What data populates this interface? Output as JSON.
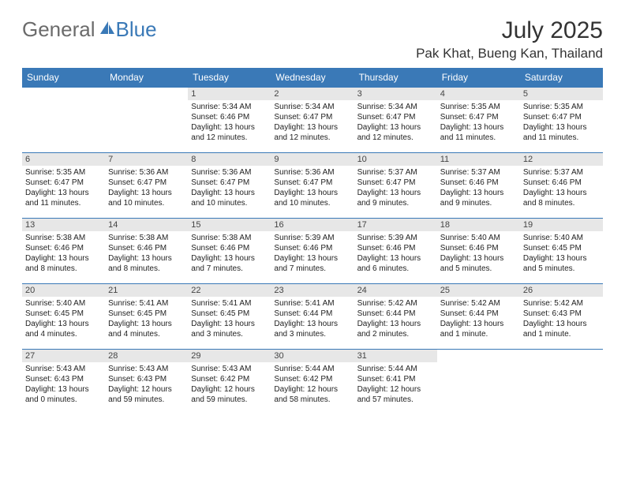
{
  "logo": {
    "part1": "General",
    "part2": "Blue"
  },
  "title": "July 2025",
  "location": "Pak Khat, Bueng Kan, Thailand",
  "colors": {
    "header_bg": "#3a79b7",
    "header_text": "#ffffff",
    "daynum_bg": "#e7e7e7",
    "border": "#3a79b7",
    "logo_gray": "#6b6b6b",
    "logo_blue": "#3a79b7"
  },
  "weekdays": [
    "Sunday",
    "Monday",
    "Tuesday",
    "Wednesday",
    "Thursday",
    "Friday",
    "Saturday"
  ],
  "weeks": [
    [
      {
        "n": "",
        "sr": "",
        "ss": "",
        "dl": ""
      },
      {
        "n": "",
        "sr": "",
        "ss": "",
        "dl": ""
      },
      {
        "n": "1",
        "sr": "5:34 AM",
        "ss": "6:46 PM",
        "dl": "13 hours and 12 minutes."
      },
      {
        "n": "2",
        "sr": "5:34 AM",
        "ss": "6:47 PM",
        "dl": "13 hours and 12 minutes."
      },
      {
        "n": "3",
        "sr": "5:34 AM",
        "ss": "6:47 PM",
        "dl": "13 hours and 12 minutes."
      },
      {
        "n": "4",
        "sr": "5:35 AM",
        "ss": "6:47 PM",
        "dl": "13 hours and 11 minutes."
      },
      {
        "n": "5",
        "sr": "5:35 AM",
        "ss": "6:47 PM",
        "dl": "13 hours and 11 minutes."
      }
    ],
    [
      {
        "n": "6",
        "sr": "5:35 AM",
        "ss": "6:47 PM",
        "dl": "13 hours and 11 minutes."
      },
      {
        "n": "7",
        "sr": "5:36 AM",
        "ss": "6:47 PM",
        "dl": "13 hours and 10 minutes."
      },
      {
        "n": "8",
        "sr": "5:36 AM",
        "ss": "6:47 PM",
        "dl": "13 hours and 10 minutes."
      },
      {
        "n": "9",
        "sr": "5:36 AM",
        "ss": "6:47 PM",
        "dl": "13 hours and 10 minutes."
      },
      {
        "n": "10",
        "sr": "5:37 AM",
        "ss": "6:47 PM",
        "dl": "13 hours and 9 minutes."
      },
      {
        "n": "11",
        "sr": "5:37 AM",
        "ss": "6:46 PM",
        "dl": "13 hours and 9 minutes."
      },
      {
        "n": "12",
        "sr": "5:37 AM",
        "ss": "6:46 PM",
        "dl": "13 hours and 8 minutes."
      }
    ],
    [
      {
        "n": "13",
        "sr": "5:38 AM",
        "ss": "6:46 PM",
        "dl": "13 hours and 8 minutes."
      },
      {
        "n": "14",
        "sr": "5:38 AM",
        "ss": "6:46 PM",
        "dl": "13 hours and 8 minutes."
      },
      {
        "n": "15",
        "sr": "5:38 AM",
        "ss": "6:46 PM",
        "dl": "13 hours and 7 minutes."
      },
      {
        "n": "16",
        "sr": "5:39 AM",
        "ss": "6:46 PM",
        "dl": "13 hours and 7 minutes."
      },
      {
        "n": "17",
        "sr": "5:39 AM",
        "ss": "6:46 PM",
        "dl": "13 hours and 6 minutes."
      },
      {
        "n": "18",
        "sr": "5:40 AM",
        "ss": "6:46 PM",
        "dl": "13 hours and 5 minutes."
      },
      {
        "n": "19",
        "sr": "5:40 AM",
        "ss": "6:45 PM",
        "dl": "13 hours and 5 minutes."
      }
    ],
    [
      {
        "n": "20",
        "sr": "5:40 AM",
        "ss": "6:45 PM",
        "dl": "13 hours and 4 minutes."
      },
      {
        "n": "21",
        "sr": "5:41 AM",
        "ss": "6:45 PM",
        "dl": "13 hours and 4 minutes."
      },
      {
        "n": "22",
        "sr": "5:41 AM",
        "ss": "6:45 PM",
        "dl": "13 hours and 3 minutes."
      },
      {
        "n": "23",
        "sr": "5:41 AM",
        "ss": "6:44 PM",
        "dl": "13 hours and 3 minutes."
      },
      {
        "n": "24",
        "sr": "5:42 AM",
        "ss": "6:44 PM",
        "dl": "13 hours and 2 minutes."
      },
      {
        "n": "25",
        "sr": "5:42 AM",
        "ss": "6:44 PM",
        "dl": "13 hours and 1 minute."
      },
      {
        "n": "26",
        "sr": "5:42 AM",
        "ss": "6:43 PM",
        "dl": "13 hours and 1 minute."
      }
    ],
    [
      {
        "n": "27",
        "sr": "5:43 AM",
        "ss": "6:43 PM",
        "dl": "13 hours and 0 minutes."
      },
      {
        "n": "28",
        "sr": "5:43 AM",
        "ss": "6:43 PM",
        "dl": "12 hours and 59 minutes."
      },
      {
        "n": "29",
        "sr": "5:43 AM",
        "ss": "6:42 PM",
        "dl": "12 hours and 59 minutes."
      },
      {
        "n": "30",
        "sr": "5:44 AM",
        "ss": "6:42 PM",
        "dl": "12 hours and 58 minutes."
      },
      {
        "n": "31",
        "sr": "5:44 AM",
        "ss": "6:41 PM",
        "dl": "12 hours and 57 minutes."
      },
      {
        "n": "",
        "sr": "",
        "ss": "",
        "dl": ""
      },
      {
        "n": "",
        "sr": "",
        "ss": "",
        "dl": ""
      }
    ]
  ],
  "labels": {
    "sunrise": "Sunrise:",
    "sunset": "Sunset:",
    "daylight": "Daylight:"
  }
}
